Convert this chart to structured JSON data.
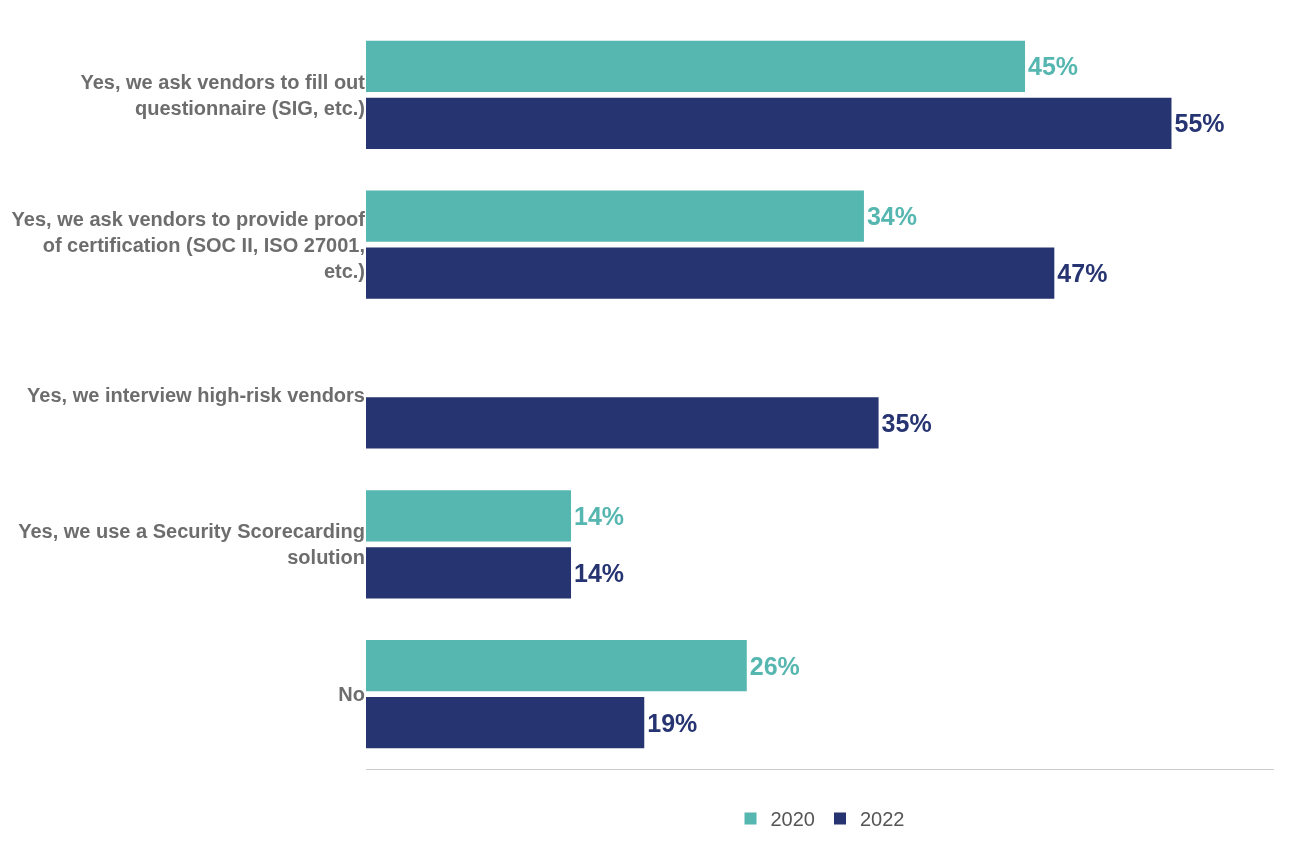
{
  "chart_data": {
    "type": "bar",
    "orientation": "horizontal",
    "categories": [
      "Yes, we ask vendors to fill out questionnaire (SIG, etc.)",
      "Yes, we ask vendors to provide proof of certification (SOC II, ISO 27001, etc.)",
      "Yes, we interview high-risk vendors",
      "Yes, we use a Security Scorecarding solution",
      "No"
    ],
    "series": [
      {
        "name": "2020",
        "color": "#56b6b0",
        "values": [
          45,
          34,
          null,
          14,
          26
        ],
        "value_labels": [
          "45%",
          "34%",
          null,
          "14%",
          "26%"
        ]
      },
      {
        "name": "2022",
        "color": "#263472",
        "values": [
          55,
          47,
          35,
          14,
          19
        ],
        "value_labels": [
          "55%",
          "47%",
          "35%",
          "14%",
          "19%"
        ]
      }
    ],
    "xlim": [
      0,
      62
    ],
    "tick_labels": "y",
    "grid": false,
    "legend": "bottom"
  }
}
